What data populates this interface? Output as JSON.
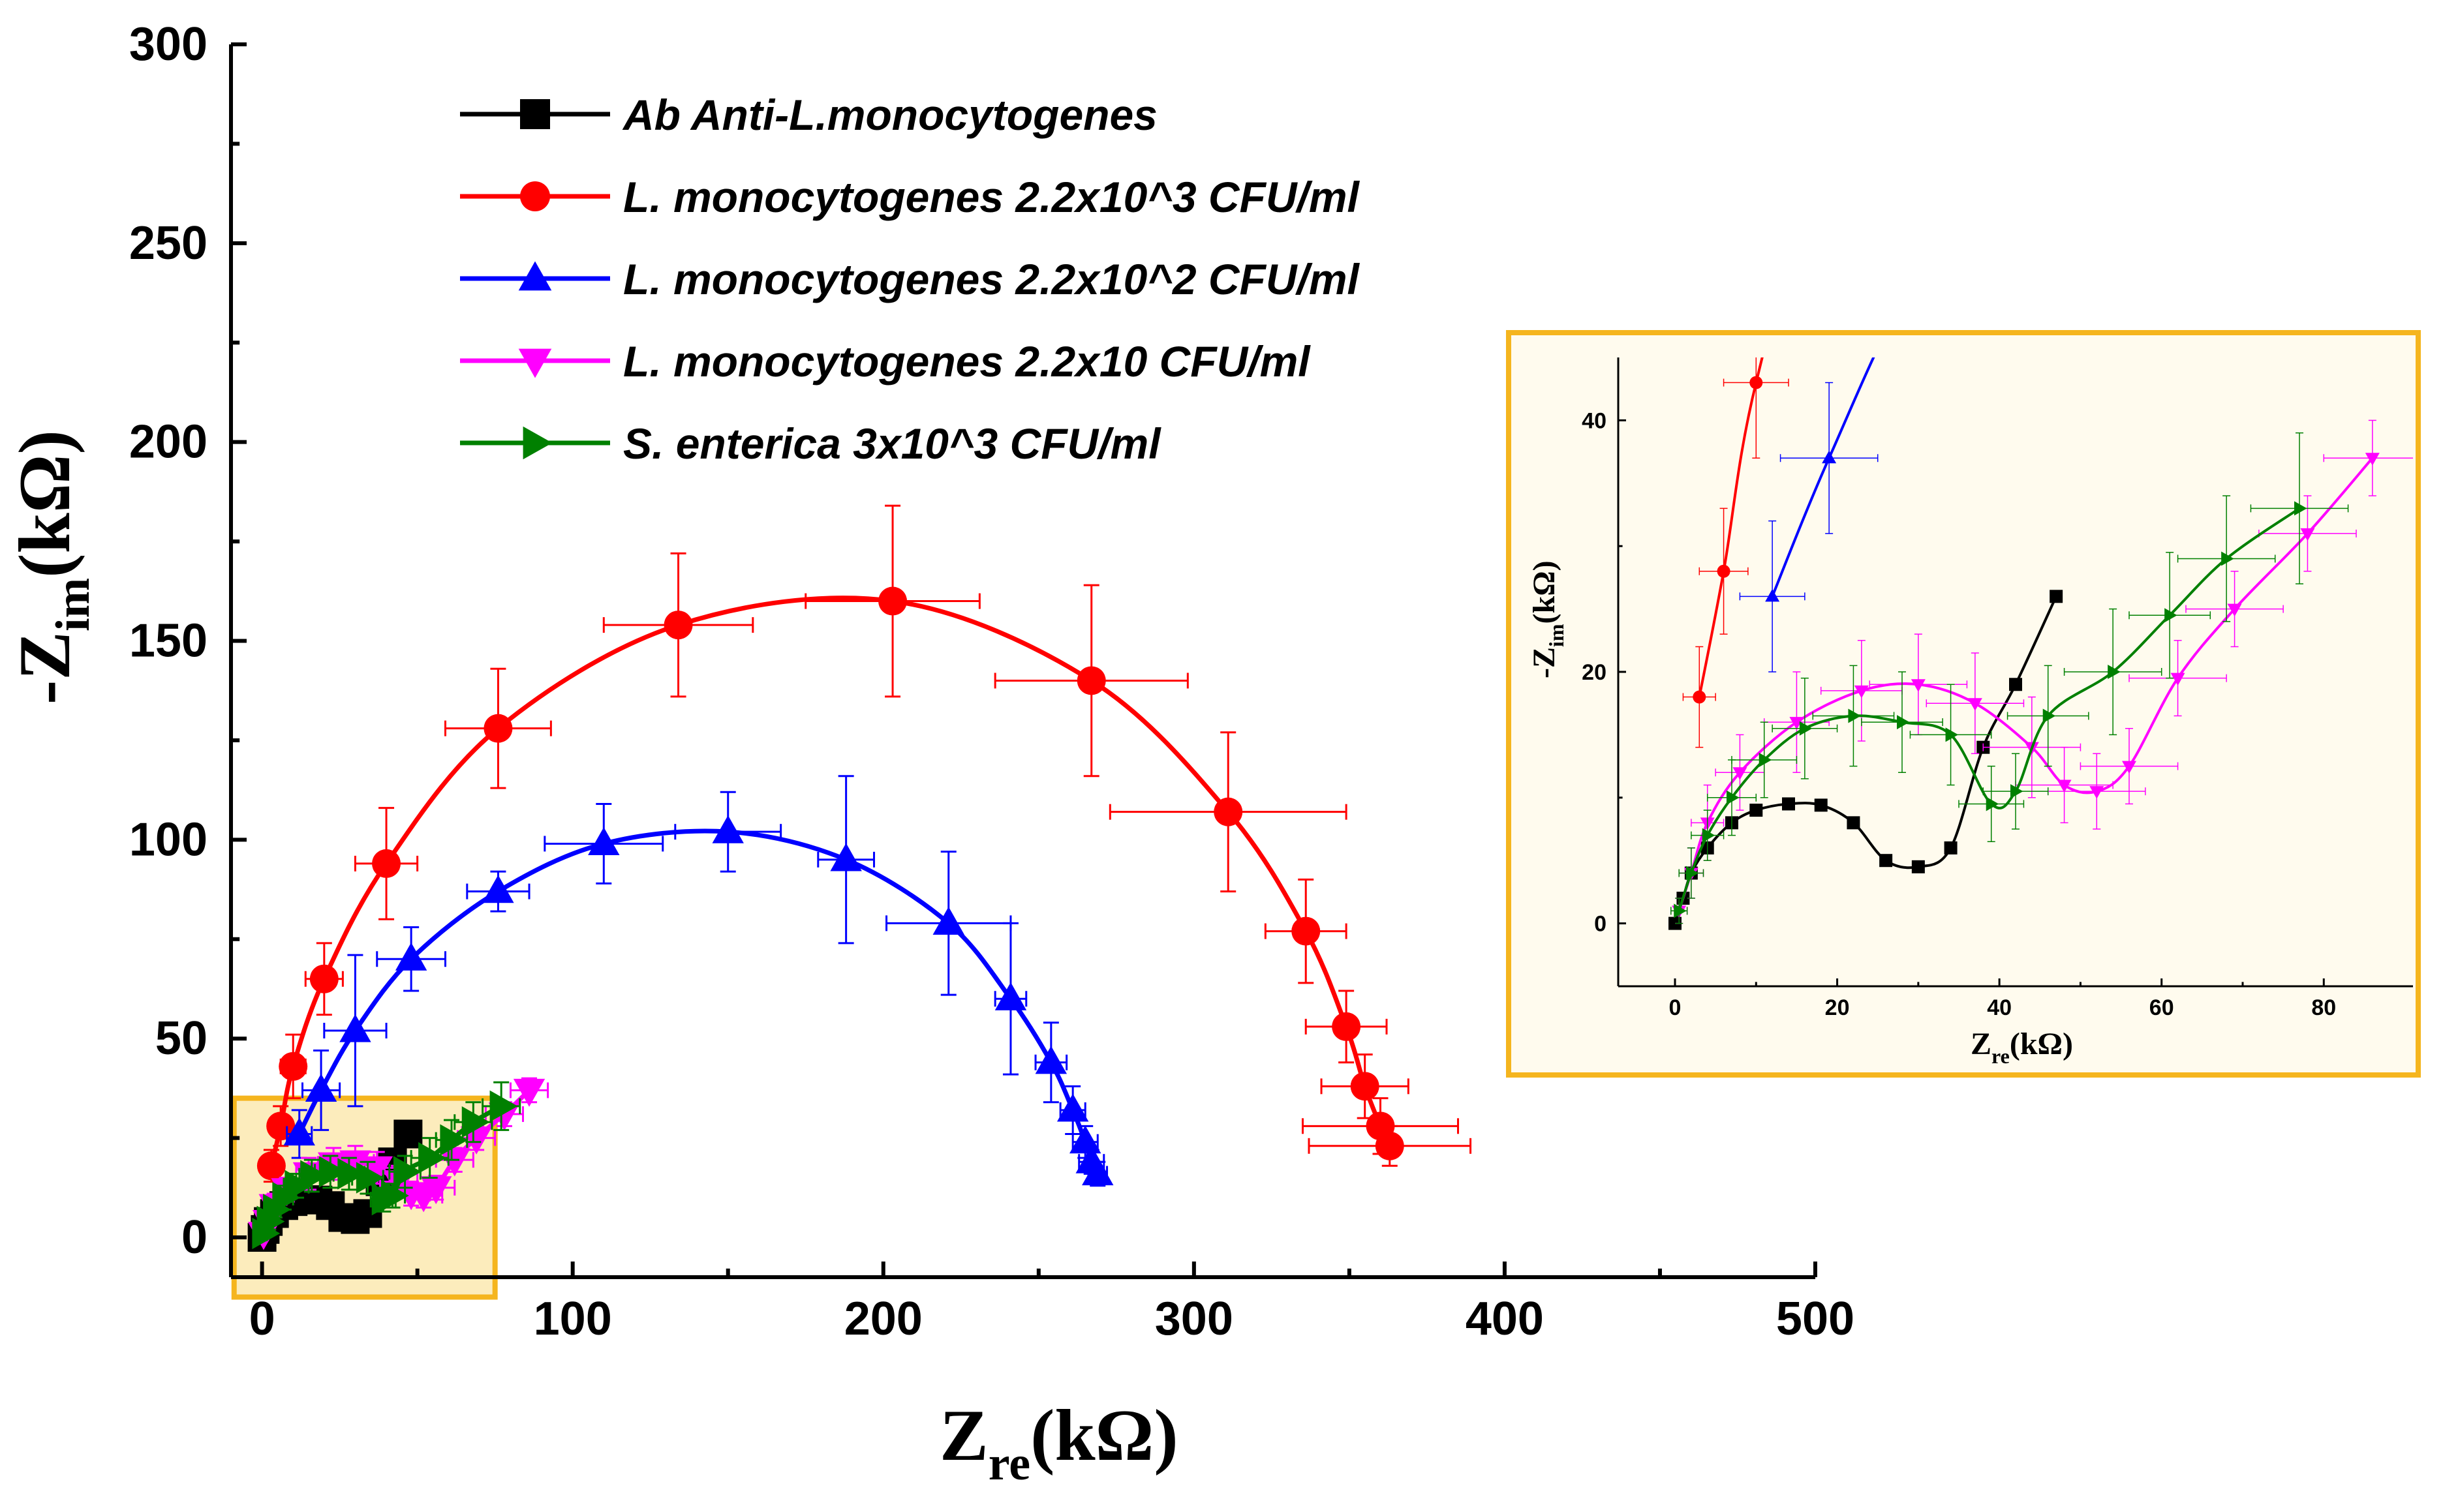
{
  "chart_data": [
    {
      "type": "scatter",
      "title": "",
      "xlabel": "Z",
      "xlabel_sub": "re",
      "xlabel_unit": "(kΩ)",
      "ylabel": "-Z",
      "ylabel_sub": "im",
      "ylabel_unit": "(kΩ)",
      "xlim": [
        -10,
        500
      ],
      "ylim": [
        -10,
        300
      ],
      "x_ticks": [
        0,
        100,
        200,
        300,
        400,
        500
      ],
      "y_ticks": [
        0,
        50,
        100,
        150,
        200,
        250,
        300
      ],
      "legend_position": "top-center",
      "series": [
        {
          "name": "Ab Anti-L.monocytogenes",
          "color": "#000000",
          "marker": "square",
          "x": [
            0,
            1,
            2,
            4,
            7,
            10,
            14,
            18,
            22,
            26,
            30,
            34,
            38,
            42,
            47
          ],
          "y": [
            0,
            2,
            4,
            6,
            8,
            9,
            9.5,
            9.4,
            8,
            5,
            4.5,
            6,
            14,
            19,
            26
          ]
        },
        {
          "name": "L. monocytogenes 2.2x10^3 CFU/ml",
          "color": "#ff0000",
          "marker": "circle",
          "x": [
            3,
            6,
            10,
            20,
            40,
            76,
            134,
            203,
            267,
            311,
            336,
            349,
            355,
            360,
            363
          ],
          "y": [
            18,
            28,
            43,
            65,
            94,
            128,
            154,
            160,
            140,
            107,
            77,
            53,
            38,
            28,
            23
          ],
          "xerr": [
            2,
            3,
            4,
            6,
            10,
            17,
            24,
            28,
            31,
            38,
            13,
            13,
            14,
            25,
            26
          ],
          "yerr": [
            4,
            5,
            8,
            9,
            14,
            15,
            18,
            24,
            24,
            20,
            13,
            9,
            8,
            7,
            5
          ]
        },
        {
          "name": "L. monocytogenes 2.2x10^2 CFU/ml",
          "color": "#0000ff",
          "marker": "triangle-up",
          "x": [
            12,
            19,
            30,
            48,
            76,
            110,
            150,
            188,
            221,
            241,
            254,
            261,
            265,
            267,
            269
          ],
          "y": [
            26,
            37,
            52,
            70,
            87,
            99,
            102,
            95,
            79,
            60,
            44,
            32,
            24,
            19,
            16
          ],
          "xerr": [
            4,
            6,
            10,
            11,
            10,
            19,
            17,
            9,
            20,
            5,
            5,
            4,
            4,
            4,
            3
          ],
          "yerr": [
            6,
            10,
            19,
            8,
            5,
            10,
            10,
            21,
            18,
            19,
            10,
            6,
            4,
            3,
            3
          ]
        },
        {
          "name": "L. monocytogenes 2.2x10 CFU/ml",
          "color": "#ff00ff",
          "marker": "triangle-down",
          "x": [
            0.5,
            2,
            4,
            8,
            15,
            23,
            30,
            37,
            44,
            48,
            52,
            56,
            62,
            69,
            78,
            86
          ],
          "y": [
            1,
            4,
            8,
            12,
            16,
            18.5,
            19,
            17.5,
            14,
            11,
            10.5,
            12.5,
            19.5,
            25,
            31,
            37
          ],
          "xerr": [
            1,
            1.5,
            2,
            3,
            4,
            5,
            6,
            6,
            6,
            6,
            6,
            6,
            6,
            6,
            6,
            6
          ],
          "yerr": [
            1,
            2,
            3,
            3,
            4,
            4,
            4,
            4,
            4,
            3,
            3,
            3,
            3,
            3,
            3,
            3
          ]
        },
        {
          "name": "S. enterica 3x10^3 CFU/ml",
          "color": "#008000",
          "marker": "triangle-right",
          "x": [
            0.5,
            2,
            4,
            7,
            11,
            16,
            22,
            28,
            34,
            39,
            42,
            46,
            54,
            61,
            68,
            77
          ],
          "y": [
            1,
            4,
            7,
            10,
            13,
            15.5,
            16.5,
            16,
            15,
            9.5,
            10.5,
            16.5,
            20,
            24.5,
            29,
            33
          ],
          "xerr": [
            1,
            1.5,
            2,
            3,
            4,
            4,
            5,
            5,
            5,
            4,
            4,
            5,
            6,
            5,
            6,
            6
          ],
          "yerr": [
            1,
            2,
            2,
            3,
            3,
            4,
            4,
            4,
            4,
            3,
            3,
            4,
            5,
            5,
            5,
            6
          ]
        }
      ]
    },
    {
      "type": "scatter",
      "title": "",
      "xlabel": "Z",
      "xlabel_sub": "re",
      "xlabel_unit": "(kΩ)",
      "ylabel": "-Z",
      "ylabel_sub": "im",
      "ylabel_unit": "(kΩ)",
      "xlim": [
        -7,
        91
      ],
      "ylim": [
        -5,
        45
      ],
      "x_ticks": [
        0,
        20,
        40,
        60,
        80
      ],
      "y_ticks": [
        0,
        20,
        40
      ],
      "inset_of": 0,
      "series_ref": "same as main chart series"
    }
  ]
}
